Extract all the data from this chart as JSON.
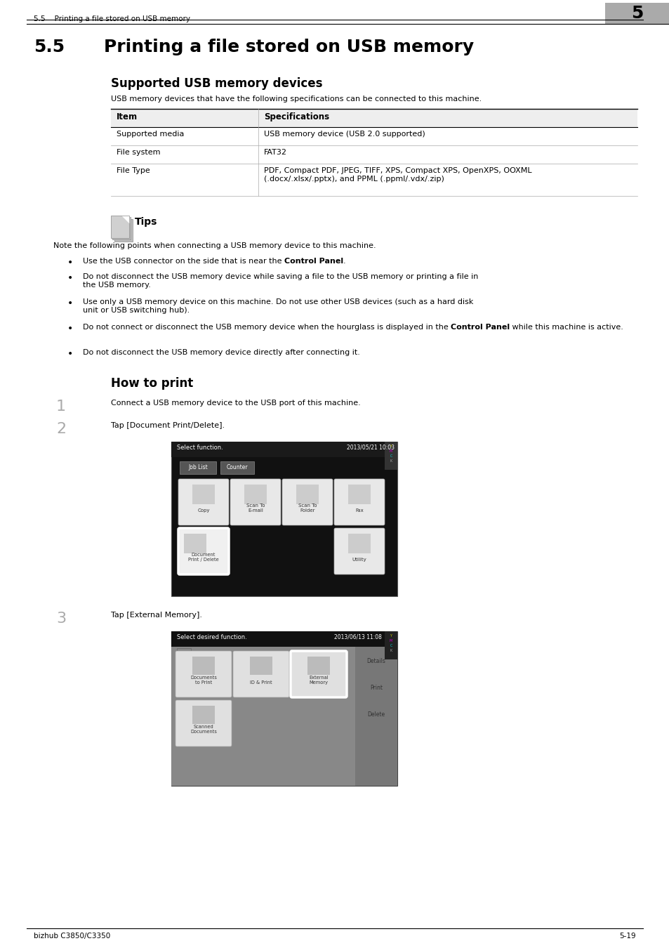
{
  "page_bg": "#ffffff",
  "header_left": "5.5    Printing a file stored on USB memory",
  "header_num": "5",
  "title_num": "5.5",
  "title_text": "Printing a file stored on USB memory",
  "sec1_title": "Supported USB memory devices",
  "sec1_intro": "USB memory devices that have the following specifications can be connected to this machine.",
  "tbl_hdr": [
    "Item",
    "Specifications"
  ],
  "tbl_rows": [
    [
      "Supported media",
      "USB memory device (USB 2.0 supported)"
    ],
    [
      "File system",
      "FAT32"
    ],
    [
      "File Type",
      "PDF, Compact PDF, JPEG, TIFF, XPS, Compact XPS, OpenXPS, OOXML\n(.docx/.xlsx/.pptx), and PPML (.ppml/.vdx/.zip)"
    ]
  ],
  "tips_title": "Tips",
  "tips_intro": "Note the following points when connecting a USB memory device to this machine.",
  "bullets": [
    [
      [
        "Use the USB connector on the side that is near the ",
        false
      ],
      [
        "Control Panel",
        true
      ],
      [
        ".",
        false
      ]
    ],
    [
      [
        "Do not disconnect the USB memory device while saving a file to the USB memory or printing a file in\nthe USB memory.",
        false
      ]
    ],
    [
      [
        "Use only a USB memory device on this machine. Do not use other USB devices (such as a hard disk\nunit or USB switching hub).",
        false
      ]
    ],
    [
      [
        "Do not connect or disconnect the USB memory device when the hourglass is displayed in the ",
        false
      ],
      [
        "Control Panel",
        true
      ],
      [
        " while this machine is active.",
        false
      ]
    ],
    [
      [
        "Do not disconnect the USB memory device directly after connecting it.",
        false
      ]
    ]
  ],
  "sec2_title": "How to print",
  "step1": "Connect a USB memory device to the USB port of this machine.",
  "step2": "Tap [Document Print/Delete].",
  "step3": "Tap [External Memory].",
  "ss1_header": "Select function.",
  "ss1_time": "2013/05/21 10:03",
  "ss2_header": "Select desired function.",
  "ss2_time": "2013/06/13 11:08",
  "footer_left": "bizhub C3850/C3350",
  "footer_right": "5-19"
}
